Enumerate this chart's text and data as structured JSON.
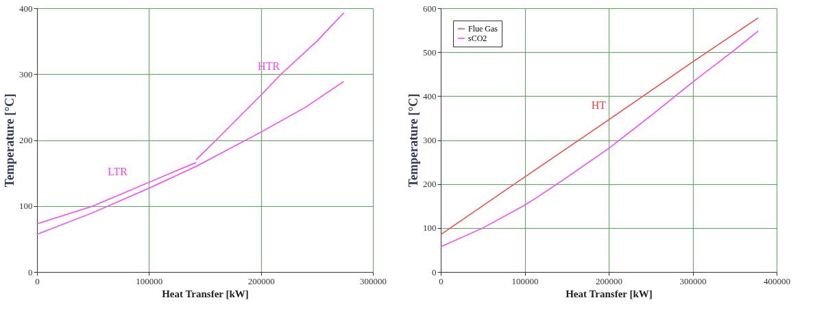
{
  "chart_data": [
    {
      "type": "line",
      "xlabel": "Heat Transfer [kW]",
      "ylabel": "Temperature [°C]",
      "xlim": [
        0,
        300000
      ],
      "ylim": [
        0,
        400
      ],
      "xticks": [
        0,
        100000,
        200000,
        300000
      ],
      "yticks": [
        0,
        100,
        200,
        300,
        400
      ],
      "grid": true,
      "series": [
        {
          "color": "#ff40ff",
          "x": [
            0,
            50000,
            100000,
            142000
          ],
          "values": [
            73,
            100,
            136,
            166
          ]
        },
        {
          "color": "#ff40ff",
          "x": [
            0,
            50000,
            100000,
            142000,
            200000,
            240000,
            274000
          ],
          "values": [
            57,
            90,
            127,
            160,
            212,
            250,
            289
          ]
        },
        {
          "color": "#ff40ff",
          "x": [
            142000,
            160000,
            200000,
            218000,
            250000,
            274000
          ],
          "values": [
            170,
            200,
            268,
            300,
            350,
            393
          ]
        }
      ],
      "annotations": [
        "LTR",
        "HTR"
      ]
    },
    {
      "type": "line",
      "xlabel": "Heat Transfer [kW]",
      "ylabel": "Temperature [°C]",
      "xlim": [
        0,
        400000
      ],
      "ylim": [
        0,
        600
      ],
      "xticks": [
        0,
        100000,
        200000,
        300000,
        400000
      ],
      "yticks": [
        0,
        100,
        200,
        300,
        400,
        500,
        600
      ],
      "grid": true,
      "legend": "top left",
      "series": [
        {
          "name": "Flue Gas",
          "color": "#ff4040",
          "x": [
            0,
            100000,
            200000,
            300000,
            378000
          ],
          "values": [
            85,
            216,
            346,
            478,
            578
          ]
        },
        {
          "name": "sCO2",
          "color": "#ff40ff",
          "x": [
            0,
            50000,
            100000,
            115000,
            150000,
            200000,
            250000,
            300000,
            350000,
            378000
          ],
          "values": [
            57,
            100,
            152,
            170,
            215,
            281,
            355,
            432,
            505,
            548
          ]
        }
      ],
      "annotations": [
        "HT"
      ]
    }
  ]
}
